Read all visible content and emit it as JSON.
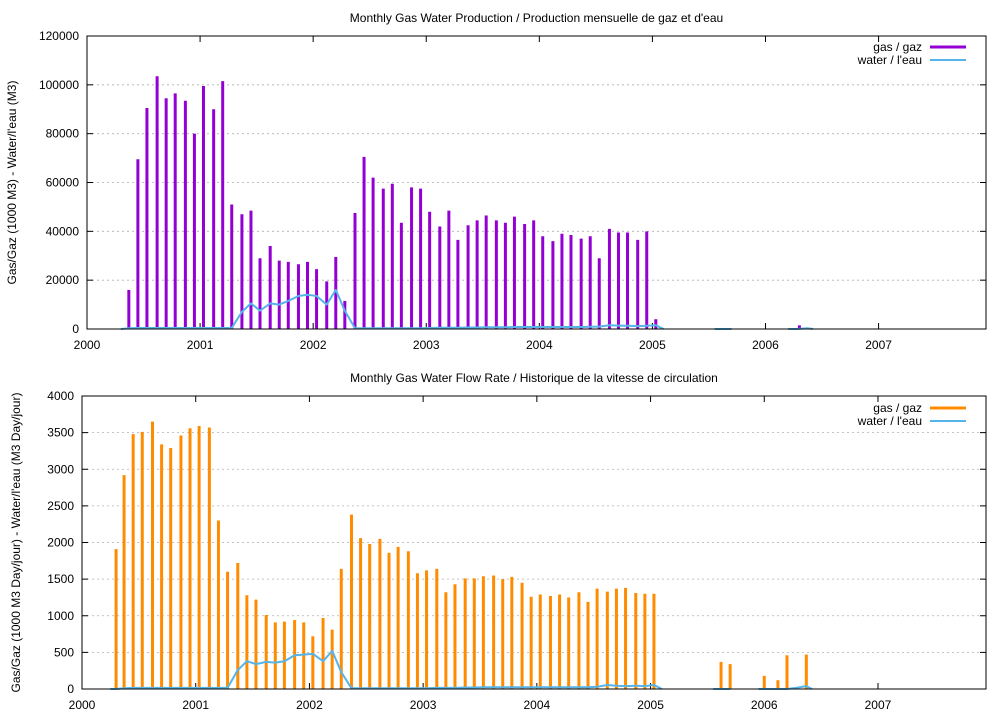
{
  "chart_data": [
    {
      "type": "bar",
      "title": "Monthly Gas  Water Production / Production mensuelle de gaz et d'eau",
      "xlabel": "",
      "ylabel": "Gas/Gaz (1000 M3) - Water/l'eau (M3)",
      "x_ticks": [
        "2000",
        "2001",
        "2002",
        "2003",
        "2004",
        "2005",
        "2006",
        "2007"
      ],
      "xlim": [
        2000.0,
        2007.95
      ],
      "y_ticks": [
        "0",
        "20000",
        "40000",
        "60000",
        "80000",
        "100000",
        "120000"
      ],
      "ylim": [
        0,
        120000
      ],
      "grid": "horizontal dotted",
      "legend": "top-right",
      "series": [
        {
          "name": "gas / gaz",
          "style": "impulses",
          "color": "#9400d3",
          "x": [
            2000.37,
            2000.45,
            2000.53,
            2000.62,
            2000.7,
            2000.78,
            2000.87,
            2000.95,
            2001.03,
            2001.12,
            2001.2,
            2001.28,
            2001.37,
            2001.45,
            2001.53,
            2001.62,
            2001.7,
            2001.78,
            2001.87,
            2001.95,
            2002.03,
            2002.12,
            2002.2,
            2002.28,
            2002.37,
            2002.45,
            2002.53,
            2002.62,
            2002.7,
            2002.78,
            2002.87,
            2002.95,
            2003.03,
            2003.12,
            2003.2,
            2003.28,
            2003.37,
            2003.45,
            2003.53,
            2003.62,
            2003.7,
            2003.78,
            2003.87,
            2003.95,
            2004.03,
            2004.12,
            2004.2,
            2004.28,
            2004.37,
            2004.45,
            2004.53,
            2004.62,
            2004.7,
            2004.78,
            2004.87,
            2004.95,
            2005.03,
            2006.3
          ],
          "values": [
            16000,
            69500,
            90500,
            103500,
            94500,
            96500,
            93500,
            80000,
            99500,
            90000,
            101500,
            51000,
            47000,
            48500,
            29000,
            34000,
            28000,
            27500,
            26500,
            27500,
            24500,
            19500,
            29500,
            11500,
            47500,
            70500,
            62000,
            57500,
            59500,
            43500,
            58000,
            57500,
            48000,
            42000,
            48500,
            36500,
            42500,
            44500,
            46500,
            44500,
            43500,
            46000,
            43000,
            44500,
            38000,
            36000,
            39000,
            38500,
            37000,
            38000,
            29000,
            41000,
            39500,
            39500,
            36500,
            40000,
            4000,
            1500
          ]
        },
        {
          "name": "water / l'eau",
          "style": "lines",
          "color": "#56b4e9",
          "x": [
            2000.3,
            2000.37,
            2000.45,
            2000.53,
            2000.62,
            2000.7,
            2000.78,
            2000.87,
            2000.95,
            2001.03,
            2001.12,
            2001.2,
            2001.28,
            2001.37,
            2001.45,
            2001.53,
            2001.62,
            2001.7,
            2001.78,
            2001.87,
            2001.95,
            2002.03,
            2002.12,
            2002.2,
            2002.28,
            2002.37,
            2002.45,
            2002.53,
            2002.62,
            2002.7,
            2002.78,
            2002.87,
            2002.95,
            2003.03,
            2003.12,
            2003.2,
            2003.28,
            2003.37,
            2003.45,
            2003.53,
            2003.62,
            2003.7,
            2003.78,
            2003.87,
            2003.95,
            2004.03,
            2004.12,
            2004.2,
            2004.28,
            2004.37,
            2004.45,
            2004.53,
            2004.62,
            2004.7,
            2004.78,
            2004.87,
            2004.95,
            2005.03,
            2005.1
          ],
          "values": [
            0,
            300,
            400,
            400,
            400,
            400,
            400,
            400,
            400,
            400,
            400,
            400,
            400,
            7000,
            10500,
            7500,
            10500,
            10000,
            11500,
            13500,
            14000,
            13500,
            10000,
            16000,
            7500,
            300,
            300,
            300,
            300,
            300,
            300,
            300,
            300,
            400,
            500,
            500,
            500,
            600,
            600,
            700,
            700,
            700,
            800,
            800,
            800,
            800,
            800,
            800,
            800,
            800,
            900,
            1000,
            1500,
            1400,
            1300,
            1200,
            1300,
            1500,
            0
          ]
        },
        {
          "name": "water / l'eau",
          "style": "lines",
          "color": "#56b4e9",
          "x": [
            2005.55,
            2005.62,
            2005.7
          ],
          "values": [
            0,
            0,
            0
          ]
        },
        {
          "name": "water / l'eau",
          "style": "lines",
          "color": "#56b4e9",
          "x": [
            2006.2,
            2006.28,
            2006.37,
            2006.42
          ],
          "values": [
            0,
            0,
            300,
            0
          ]
        }
      ]
    },
    {
      "type": "bar",
      "title": "Monthly Gas  Water Flow Rate / Historique de la vitesse de circulation",
      "xlabel": "",
      "ylabel": "Gas/Gaz (1000 M3 Day/jour) - Water/l'eau (M3 Day/jour)",
      "x_ticks": [
        "2000",
        "2001",
        "2002",
        "2003",
        "2004",
        "2005",
        "2006",
        "2007"
      ],
      "xlim": [
        2000.0,
        2007.95
      ],
      "y_ticks": [
        "0",
        "500",
        "1000",
        "1500",
        "2000",
        "2500",
        "3000",
        "3500",
        "4000"
      ],
      "ylim": [
        0,
        4000
      ],
      "grid": "horizontal dotted",
      "legend": "top-right",
      "series": [
        {
          "name": "gas / gaz",
          "style": "impulses",
          "color": "#ff8c00",
          "x": [
            2000.3,
            2000.37,
            2000.45,
            2000.53,
            2000.62,
            2000.7,
            2000.78,
            2000.87,
            2000.95,
            2001.03,
            2001.12,
            2001.2,
            2001.28,
            2001.37,
            2001.45,
            2001.53,
            2001.62,
            2001.7,
            2001.78,
            2001.87,
            2001.95,
            2002.03,
            2002.12,
            2002.2,
            2002.28,
            2002.37,
            2002.45,
            2002.53,
            2002.62,
            2002.7,
            2002.78,
            2002.87,
            2002.95,
            2003.03,
            2003.12,
            2003.2,
            2003.28,
            2003.37,
            2003.45,
            2003.53,
            2003.62,
            2003.7,
            2003.78,
            2003.87,
            2003.95,
            2004.03,
            2004.12,
            2004.2,
            2004.28,
            2004.37,
            2004.45,
            2004.53,
            2004.62,
            2004.7,
            2004.78,
            2004.87,
            2004.95,
            2005.03,
            2005.62,
            2005.7,
            2006.0,
            2006.12,
            2006.2,
            2006.37
          ],
          "values": [
            1910,
            2920,
            3480,
            3510,
            3650,
            3340,
            3290,
            3460,
            3560,
            3590,
            3570,
            2300,
            1600,
            1720,
            1280,
            1220,
            1010,
            910,
            920,
            940,
            910,
            720,
            970,
            810,
            1640,
            2380,
            2060,
            1980,
            2050,
            1860,
            1940,
            1880,
            1580,
            1620,
            1640,
            1320,
            1430,
            1510,
            1510,
            1540,
            1550,
            1500,
            1530,
            1450,
            1260,
            1290,
            1270,
            1290,
            1250,
            1320,
            1190,
            1370,
            1330,
            1370,
            1380,
            1310,
            1300,
            1300,
            370,
            340,
            180,
            120,
            460,
            470
          ]
        },
        {
          "name": "water / l'eau",
          "style": "lines",
          "color": "#56b4e9",
          "x": [
            2000.25,
            2000.3,
            2000.37,
            2000.45,
            2000.53,
            2000.62,
            2000.7,
            2000.78,
            2000.87,
            2000.95,
            2001.03,
            2001.12,
            2001.2,
            2001.28,
            2001.37,
            2001.45,
            2001.53,
            2001.62,
            2001.7,
            2001.78,
            2001.87,
            2001.95,
            2002.03,
            2002.12,
            2002.2,
            2002.28,
            2002.37,
            2002.45,
            2002.53,
            2002.62,
            2002.7,
            2002.78,
            2002.87,
            2002.95,
            2003.03,
            2003.12,
            2003.2,
            2003.28,
            2003.37,
            2003.45,
            2003.53,
            2003.62,
            2003.7,
            2003.78,
            2003.87,
            2003.95,
            2004.03,
            2004.12,
            2004.2,
            2004.28,
            2004.37,
            2004.45,
            2004.53,
            2004.62,
            2004.7,
            2004.78,
            2004.87,
            2004.95,
            2005.03,
            2005.1
          ],
          "values": [
            0,
            0,
            10,
            15,
            15,
            15,
            15,
            15,
            15,
            15,
            15,
            15,
            15,
            15,
            260,
            380,
            340,
            370,
            360,
            380,
            460,
            470,
            480,
            380,
            520,
            230,
            10,
            10,
            10,
            10,
            10,
            10,
            10,
            10,
            10,
            15,
            15,
            15,
            20,
            20,
            25,
            25,
            25,
            25,
            25,
            25,
            25,
            25,
            25,
            25,
            25,
            25,
            30,
            55,
            45,
            40,
            45,
            40,
            55,
            0
          ]
        },
        {
          "name": "water / l'eau",
          "style": "lines",
          "color": "#56b4e9",
          "x": [
            2005.55,
            2005.62,
            2005.7
          ],
          "values": [
            0,
            0,
            0
          ]
        },
        {
          "name": "water / l'eau",
          "style": "lines",
          "color": "#56b4e9",
          "x": [
            2005.95,
            2006.1,
            2006.2,
            2006.28,
            2006.37,
            2006.42
          ],
          "values": [
            0,
            0,
            0,
            15,
            40,
            0
          ]
        }
      ]
    }
  ]
}
